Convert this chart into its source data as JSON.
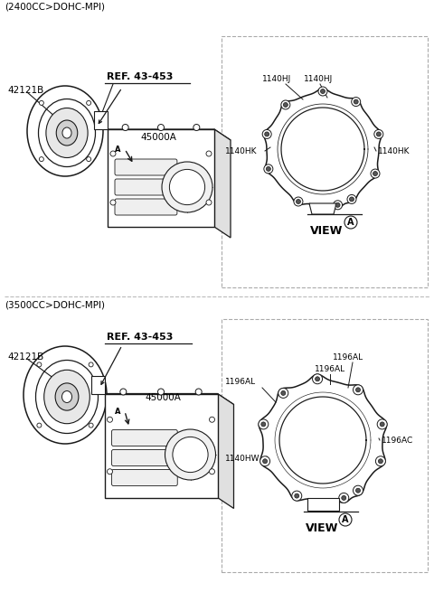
{
  "bg_color": "#ffffff",
  "line_color": "#1a1a1a",
  "dashed_color": "#aaaaaa",
  "figsize": [
    4.8,
    6.55
  ],
  "dpi": 100,
  "top_header": "(2400CC>DOHC-MPI)",
  "bottom_header": "(3500CC>DOHC-MPI)",
  "label_42121B": "42121B",
  "label_ref": "REF. 43-453",
  "label_45000A": "45000A",
  "top_view_labels": {
    "HJ1": "1140HJ",
    "HJ2": "1140HJ",
    "HK1": "1140HK",
    "HK2": "1140HK",
    "view_a": "VIEW"
  },
  "bottom_view_labels": {
    "AL1": "1196AL",
    "AL2": "1196AL",
    "AL3": "1196AL",
    "AC": "1196AC",
    "HW": "1140HW",
    "view_a": "VIEW"
  }
}
